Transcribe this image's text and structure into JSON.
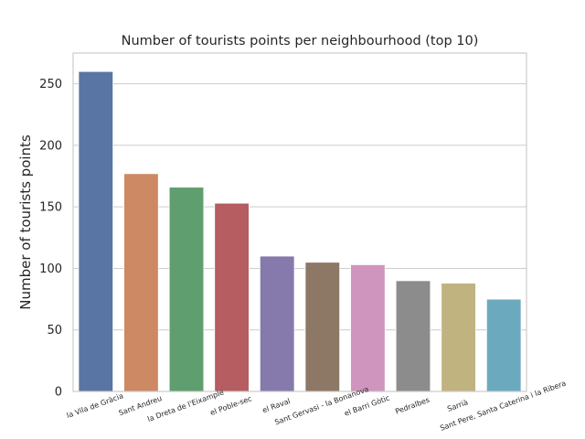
{
  "chart_data": {
    "type": "bar",
    "title": "Number of tourists points per neighbourhood (top 10)",
    "xlabel": "",
    "ylabel": "Number of tourists points",
    "ylim": [
      0,
      275
    ],
    "yticks": [
      0,
      50,
      100,
      150,
      200,
      250
    ],
    "grid": true,
    "categories": [
      "la Vila de Gràcia",
      "Sant Andreu",
      "la Dreta de l'Eixample",
      "el Poble-sec",
      "el Raval",
      "Sant Gervasi - la Bonanova",
      "el Barri Gòtic",
      "Pedralbes",
      "Sarrià",
      "Sant Pere, Santa Caterina i la Ribera"
    ],
    "values": [
      260,
      177,
      166,
      153,
      110,
      105,
      103,
      90,
      88,
      75
    ],
    "colors": [
      "#5975a4",
      "#cc8963",
      "#5f9e6e",
      "#b55d60",
      "#857aab",
      "#8d7866",
      "#d095bf",
      "#8c8c8c",
      "#c1b37f",
      "#6ba9bf"
    ]
  }
}
